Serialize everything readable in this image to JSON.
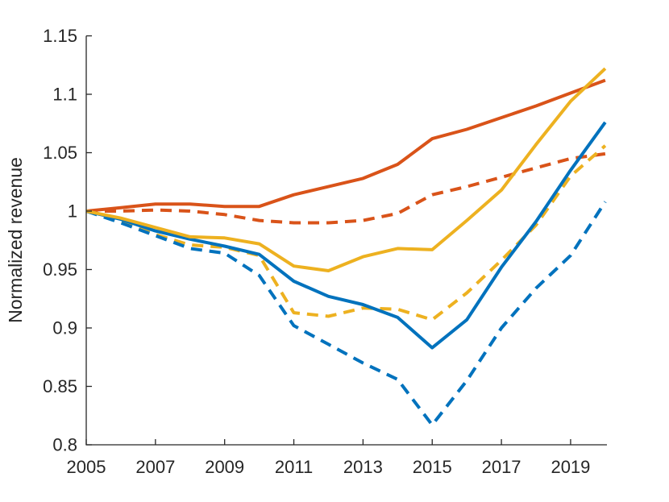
{
  "page": {
    "background": "#ffffff"
  },
  "chart_data": {
    "type": "line",
    "title": "",
    "xlabel": "",
    "ylabel": "Normalized revenue",
    "grid": false,
    "legend_position": "none",
    "axis_color": "#262626",
    "xlim": [
      2005,
      2020.05
    ],
    "ylim": [
      0.8,
      1.15
    ],
    "xticks": {
      "values": [
        2005,
        2007,
        2009,
        2011,
        2013,
        2015,
        2017,
        2019
      ],
      "labels": [
        "2005",
        "2007",
        "2009",
        "2011",
        "2013",
        "2015",
        "2017",
        "2019"
      ]
    },
    "yticks": {
      "values": [
        0.8,
        0.85,
        0.9,
        0.95,
        1.0,
        1.05,
        1.1,
        1.15
      ],
      "labels": [
        "0.8",
        "0.85",
        "0.9",
        "0.95",
        "1",
        "1.05",
        "1.1",
        "1.15"
      ]
    },
    "x": [
      2005,
      2006,
      2007,
      2008,
      2009,
      2010,
      2011,
      2012,
      2013,
      2014,
      2015,
      2016,
      2017,
      2018,
      2019,
      2020
    ],
    "series": [
      {
        "name": "orange-dashed",
        "color": "#D95319",
        "style": "dashed",
        "values": [
          1.0,
          1.0,
          1.001,
          1.0,
          0.997,
          0.992,
          0.99,
          0.99,
          0.992,
          0.998,
          1.014,
          1.021,
          1.029,
          1.037,
          1.045,
          1.049
        ]
      },
      {
        "name": "yellow-dashed",
        "color": "#EDB120",
        "style": "dashed",
        "values": [
          1.0,
          0.991,
          0.98,
          0.971,
          0.969,
          0.962,
          0.913,
          0.91,
          0.917,
          0.916,
          0.907,
          0.93,
          0.958,
          0.988,
          1.03,
          1.056
        ]
      },
      {
        "name": "blue-dashed",
        "color": "#0072BD",
        "style": "dashed",
        "values": [
          1.0,
          0.99,
          0.979,
          0.968,
          0.964,
          0.945,
          0.902,
          0.886,
          0.87,
          0.856,
          0.817,
          0.855,
          0.9,
          0.934,
          0.962,
          1.008
        ]
      },
      {
        "name": "orange-solid",
        "color": "#D95319",
        "style": "solid",
        "values": [
          1.0,
          1.003,
          1.006,
          1.006,
          1.004,
          1.004,
          1.014,
          1.021,
          1.028,
          1.04,
          1.062,
          1.07,
          1.08,
          1.09,
          1.101,
          1.112
        ]
      },
      {
        "name": "blue-solid",
        "color": "#0072BD",
        "style": "solid",
        "values": [
          1.0,
          0.993,
          0.983,
          0.976,
          0.97,
          0.963,
          0.94,
          0.927,
          0.92,
          0.909,
          0.883,
          0.907,
          0.952,
          0.991,
          1.035,
          1.076
        ]
      },
      {
        "name": "yellow-solid",
        "color": "#EDB120",
        "style": "solid",
        "values": [
          1.0,
          0.994,
          0.986,
          0.978,
          0.977,
          0.972,
          0.953,
          0.949,
          0.961,
          0.968,
          0.967,
          0.992,
          1.018,
          1.057,
          1.094,
          1.122
        ]
      }
    ]
  }
}
